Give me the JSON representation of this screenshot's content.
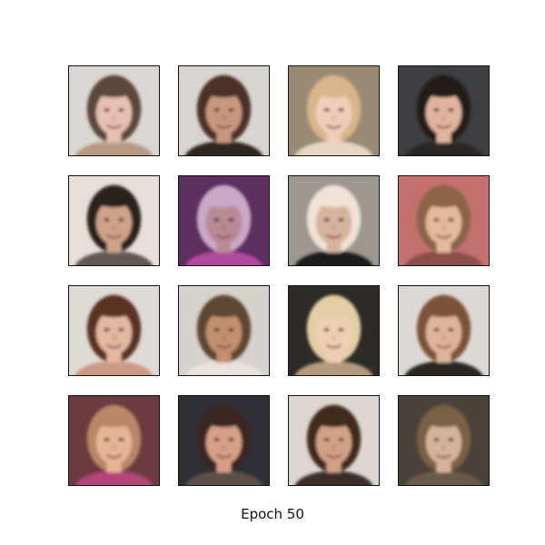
{
  "caption": "Epoch 50",
  "grid": {
    "rows": 4,
    "cols": 4
  },
  "samples": [
    {
      "bg": "#d9d6d3",
      "hair": "#5b463a",
      "skin": "#e6c0b2",
      "shirt": "#b99a84"
    },
    {
      "bg": "#d8d4d2",
      "hair": "#4b3328",
      "skin": "#c9977f",
      "shirt": "#2f2520"
    },
    {
      "bg": "#9a8a74",
      "hair": "#d8b58a",
      "skin": "#efcdb9",
      "shirt": "#e7d5c5"
    },
    {
      "bg": "#3d3f42",
      "hair": "#211a18",
      "skin": "#e0b49d",
      "shirt": "#2b2827"
    },
    {
      "bg": "#e6dfda",
      "hair": "#2a221d",
      "skin": "#cfa28a",
      "shirt": "#5e5a56"
    },
    {
      "bg": "#5c2f5e",
      "hair": "#c9a8c8",
      "skin": "#b88a94",
      "shirt": "#b24a9e"
    },
    {
      "bg": "#9c978f",
      "hair": "#f0e2d6",
      "skin": "#d7b39e",
      "shirt": "#1e1c1a"
    },
    {
      "bg": "#c4706f",
      "hair": "#8b6449",
      "skin": "#e2b99c",
      "shirt": "#8a4f48"
    },
    {
      "bg": "#dedad6",
      "hair": "#5a3124",
      "skin": "#e3b7a1",
      "shirt": "#cc9a86"
    },
    {
      "bg": "#d6d2cd",
      "hair": "#5d4632",
      "skin": "#c2906e",
      "shirt": "#e9e3dd"
    },
    {
      "bg": "#2d2b28",
      "hair": "#e3cfa4",
      "skin": "#efcfb3",
      "shirt": "#b29a7d"
    },
    {
      "bg": "#dcd8d5",
      "hair": "#7b5238",
      "skin": "#dfb49b",
      "shirt": "#2a2523"
    },
    {
      "bg": "#6b3b3f",
      "hair": "#b98765",
      "skin": "#e6b496",
      "shirt": "#b3447a"
    },
    {
      "bg": "#2e3036",
      "hair": "#3a2620",
      "skin": "#d79f86",
      "shirt": "#5b4f4a"
    },
    {
      "bg": "#dcd6d1",
      "hair": "#3f2a1f",
      "skin": "#d2a184",
      "shirt": "#3b2f2a"
    },
    {
      "bg": "#4a4238",
      "hair": "#7a6045",
      "skin": "#d4b39b",
      "shirt": "#6a5a48"
    }
  ]
}
